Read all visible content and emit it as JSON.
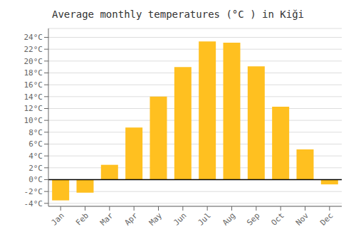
{
  "chart_data": {
    "type": "bar",
    "title": "Average monthly temperatures (°C ) in Kiği",
    "categories": [
      "Jan",
      "Feb",
      "Mar",
      "Apr",
      "May",
      "Jun",
      "Jul",
      "Aug",
      "Sep",
      "Oct",
      "Nov",
      "Dec"
    ],
    "values": [
      -3.5,
      -2.2,
      2.5,
      8.8,
      14.0,
      19.0,
      23.3,
      23.1,
      19.1,
      12.3,
      5.1,
      -0.8
    ],
    "color": "#FFC020",
    "ylim": [
      -4.5,
      25.5
    ],
    "yticks": [
      {
        "value": -4,
        "label": "-4°C"
      },
      {
        "value": -2,
        "label": "-2°C"
      },
      {
        "value": 0,
        "label": "0°C"
      },
      {
        "value": 2,
        "label": "2°C"
      },
      {
        "value": 4,
        "label": "4°C"
      },
      {
        "value": 6,
        "label": "6°C"
      },
      {
        "value": 8,
        "label": "8°C"
      },
      {
        "value": 10,
        "label": "10°C"
      },
      {
        "value": 12,
        "label": "12°C"
      },
      {
        "value": 14,
        "label": "14°C"
      },
      {
        "value": 16,
        "label": "16°C"
      },
      {
        "value": 18,
        "label": "18°C"
      },
      {
        "value": 20,
        "label": "20°C"
      },
      {
        "value": 22,
        "label": "22°C"
      },
      {
        "value": 24,
        "label": "24°C"
      }
    ],
    "grid": true
  }
}
